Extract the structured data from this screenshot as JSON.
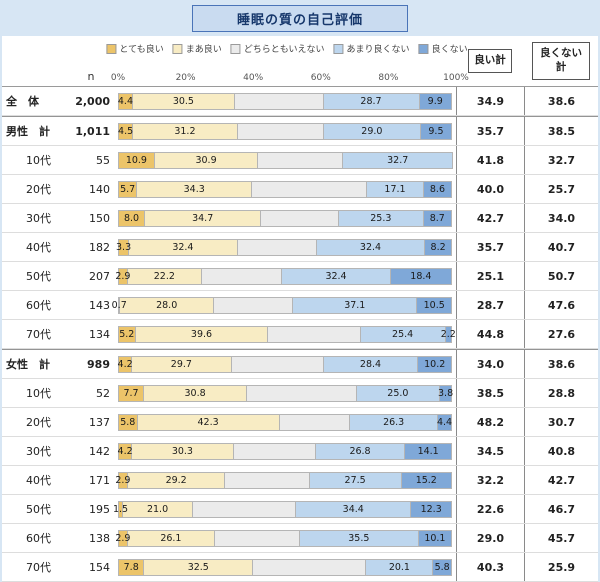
{
  "title": "睡眠の質の自己評価",
  "columns": {
    "n": "n",
    "good_total": "良い計",
    "bad_total": "良くない計"
  },
  "axis": {
    "ticks": [
      "0%",
      "20%",
      "40%",
      "60%",
      "80%",
      "100%"
    ]
  },
  "chart_data": {
    "type": "bar",
    "stacked": true,
    "orientation": "horizontal",
    "xlim": [
      0,
      100
    ],
    "legend_position": "top",
    "series_labels": [
      "とても良い",
      "まあ良い",
      "どちらともいえない",
      "あまり良くない",
      "良くない"
    ],
    "series_colors": [
      "#ecc469",
      "#f8ecc4",
      "#ebebeb",
      "#bdd6ee",
      "#7fa8d8"
    ],
    "note": "unlabeled middle values estimated as remainder to 100%",
    "rows": [
      {
        "label": "全　体",
        "n": "2,000",
        "bold": true,
        "sep": false,
        "values": [
          4.4,
          30.5,
          26.5,
          28.7,
          9.9
        ],
        "value_labels": [
          "4.4",
          "30.5",
          "",
          "28.7",
          "9.9"
        ],
        "good": "34.9",
        "bad": "38.6"
      },
      {
        "label": "男性　計",
        "n": "1,011",
        "bold": true,
        "sep": true,
        "values": [
          4.5,
          31.2,
          25.8,
          29.0,
          9.5
        ],
        "value_labels": [
          "4.5",
          "31.2",
          "",
          "29.0",
          "9.5"
        ],
        "good": "35.7",
        "bad": "38.5"
      },
      {
        "label": "10代",
        "n": "55",
        "bold": false,
        "sep": false,
        "values": [
          10.9,
          30.9,
          25.5,
          32.7,
          0
        ],
        "value_labels": [
          "10.9",
          "30.9",
          "",
          "32.7",
          ""
        ],
        "good": "41.8",
        "bad": "32.7"
      },
      {
        "label": "20代",
        "n": "140",
        "bold": false,
        "sep": false,
        "values": [
          5.7,
          34.3,
          34.3,
          17.1,
          8.6
        ],
        "value_labels": [
          "5.7",
          "34.3",
          "",
          "17.1",
          "8.6"
        ],
        "good": "40.0",
        "bad": "25.7"
      },
      {
        "label": "30代",
        "n": "150",
        "bold": false,
        "sep": false,
        "values": [
          8.0,
          34.7,
          23.3,
          25.3,
          8.7
        ],
        "value_labels": [
          "8.0",
          "34.7",
          "",
          "25.3",
          "8.7"
        ],
        "good": "42.7",
        "bad": "34.0"
      },
      {
        "label": "40代",
        "n": "182",
        "bold": false,
        "sep": false,
        "values": [
          3.3,
          32.4,
          23.7,
          32.4,
          8.2
        ],
        "value_labels": [
          "3.3",
          "32.4",
          "",
          "32.4",
          "8.2"
        ],
        "good": "35.7",
        "bad": "40.7"
      },
      {
        "label": "50代",
        "n": "207",
        "bold": false,
        "sep": false,
        "values": [
          2.9,
          22.2,
          24.1,
          32.4,
          18.4
        ],
        "value_labels": [
          "2.9",
          "22.2",
          "",
          "32.4",
          "18.4"
        ],
        "good": "25.1",
        "bad": "50.7"
      },
      {
        "label": "60代",
        "n": "143",
        "bold": false,
        "sep": false,
        "values": [
          0.7,
          28.0,
          23.7,
          37.1,
          10.5
        ],
        "value_labels": [
          "0.7",
          "28.0",
          "",
          "37.1",
          "10.5"
        ],
        "good": "28.7",
        "bad": "47.6"
      },
      {
        "label": "70代",
        "n": "134",
        "bold": false,
        "sep": false,
        "values": [
          5.2,
          39.6,
          27.6,
          25.4,
          2.2
        ],
        "value_labels": [
          "5.2",
          "39.6",
          "",
          "25.4",
          "2.2"
        ],
        "good": "44.8",
        "bad": "27.6"
      },
      {
        "label": "女性　計",
        "n": "989",
        "bold": true,
        "sep": true,
        "values": [
          4.2,
          29.7,
          27.5,
          28.4,
          10.2
        ],
        "value_labels": [
          "4.2",
          "29.7",
          "",
          "28.4",
          "10.2"
        ],
        "good": "34.0",
        "bad": "38.6"
      },
      {
        "label": "10代",
        "n": "52",
        "bold": false,
        "sep": false,
        "values": [
          7.7,
          30.8,
          32.7,
          25.0,
          3.8
        ],
        "value_labels": [
          "7.7",
          "30.8",
          "",
          "25.0",
          "3.8"
        ],
        "good": "38.5",
        "bad": "28.8"
      },
      {
        "label": "20代",
        "n": "137",
        "bold": false,
        "sep": false,
        "values": [
          5.8,
          42.3,
          21.2,
          26.3,
          4.4
        ],
        "value_labels": [
          "5.8",
          "42.3",
          "",
          "26.3",
          "4.4"
        ],
        "good": "48.2",
        "bad": "30.7"
      },
      {
        "label": "30代",
        "n": "142",
        "bold": false,
        "sep": false,
        "values": [
          4.2,
          30.3,
          24.6,
          26.8,
          14.1
        ],
        "value_labels": [
          "4.2",
          "30.3",
          "",
          "26.8",
          "14.1"
        ],
        "good": "34.5",
        "bad": "40.8"
      },
      {
        "label": "40代",
        "n": "171",
        "bold": false,
        "sep": false,
        "values": [
          2.9,
          29.2,
          25.2,
          27.5,
          15.2
        ],
        "value_labels": [
          "2.9",
          "29.2",
          "",
          "27.5",
          "15.2"
        ],
        "good": "32.2",
        "bad": "42.7"
      },
      {
        "label": "50代",
        "n": "195",
        "bold": false,
        "sep": false,
        "values": [
          1.5,
          21.0,
          30.8,
          34.4,
          12.3
        ],
        "value_labels": [
          "1.5",
          "21.0",
          "",
          "34.4",
          "12.3"
        ],
        "good": "22.6",
        "bad": "46.7"
      },
      {
        "label": "60代",
        "n": "138",
        "bold": false,
        "sep": false,
        "values": [
          2.9,
          26.1,
          25.4,
          35.5,
          10.1
        ],
        "value_labels": [
          "2.9",
          "26.1",
          "",
          "35.5",
          "10.1"
        ],
        "good": "29.0",
        "bad": "45.7"
      },
      {
        "label": "70代",
        "n": "154",
        "bold": false,
        "sep": false,
        "values": [
          7.8,
          32.5,
          33.8,
          20.1,
          5.8
        ],
        "value_labels": [
          "7.8",
          "32.5",
          "",
          "20.1",
          "5.8"
        ],
        "good": "40.3",
        "bad": "25.9"
      }
    ]
  }
}
